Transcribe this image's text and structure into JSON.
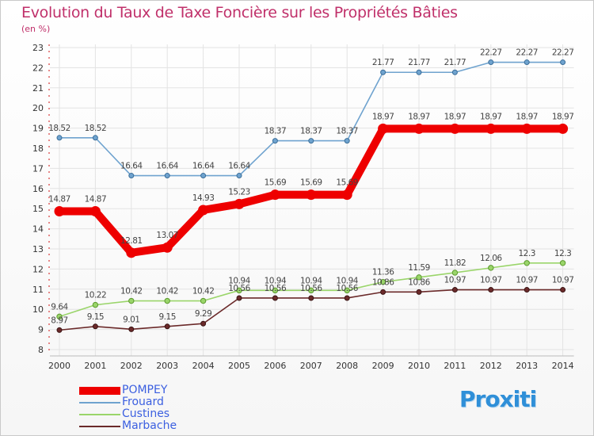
{
  "chart_data": {
    "type": "line",
    "title": "Evolution du Taux de Taxe Foncière sur les Propriétés Bâties",
    "subtitle": "(en %)",
    "xlabel": "",
    "ylabel": "",
    "ylim": [
      8,
      23
    ],
    "yticks": [
      "8",
      "9",
      "10",
      "11",
      "12",
      "13",
      "14",
      "15",
      "16",
      "17",
      "18",
      "19",
      "20",
      "21",
      "22",
      "23"
    ],
    "categories": [
      "2000",
      "2001",
      "2002",
      "2003",
      "2004",
      "2005",
      "2006",
      "2007",
      "2008",
      "2009",
      "2010",
      "2011",
      "2012",
      "2013",
      "2014"
    ],
    "series": [
      {
        "name": "Frouard",
        "color": "#6fa3cf",
        "values": [
          18.52,
          18.52,
          16.64,
          16.64,
          16.64,
          16.64,
          18.37,
          18.37,
          18.37,
          21.77,
          21.77,
          21.77,
          22.27,
          22.27,
          22.27
        ],
        "labels": [
          "18.52",
          "18.52",
          "16.64",
          "16.64",
          "16.64",
          "16.64",
          "18.37",
          "18.37",
          "18.37",
          "21.77",
          "21.77",
          "21.77",
          "22.27",
          "22.27",
          "22.27"
        ]
      },
      {
        "name": "Custines",
        "color": "#9ad56a",
        "values": [
          9.64,
          10.22,
          10.42,
          10.42,
          10.42,
          10.94,
          10.94,
          10.94,
          10.94,
          11.36,
          11.59,
          11.82,
          12.06,
          12.3,
          12.3
        ],
        "labels": [
          "9.64",
          "10.22",
          "10.42",
          "10.42",
          "10.42",
          "10.94",
          "10.94",
          "10.94",
          "10.94",
          "11.36",
          "11.59",
          "11.82",
          "12.06",
          "12.3",
          "12.3"
        ]
      },
      {
        "name": "Marbache",
        "color": "#6b2a2a",
        "values": [
          8.97,
          9.15,
          9.01,
          9.15,
          9.29,
          10.56,
          10.56,
          10.56,
          10.56,
          10.86,
          10.86,
          10.97,
          10.97,
          10.97,
          10.97
        ],
        "labels": [
          "8.97",
          "9.15",
          "9.01",
          "9.15",
          "9.29",
          "10.56",
          "10.56",
          "10.56",
          "10.56",
          "10.86",
          "10.86",
          "10.97",
          "10.97",
          "10.97",
          "10.97"
        ]
      },
      {
        "name": "POMPEY",
        "color": "#ee0000",
        "values": [
          14.87,
          14.87,
          12.81,
          13.07,
          14.93,
          15.23,
          15.69,
          15.69,
          15.69,
          18.97,
          18.97,
          18.97,
          18.97,
          18.97,
          18.97
        ],
        "labels": [
          "14.87",
          "14.87",
          "12.81",
          "13.07",
          "14.93",
          "15.23",
          "15.69",
          "15.69",
          "15.69",
          "18.97",
          "18.97",
          "18.97",
          "18.97",
          "18.97",
          "18.97"
        ]
      }
    ],
    "legend": [
      "POMPEY",
      "Frouard",
      "Custines",
      "Marbache"
    ],
    "legend_position": "bottom-left"
  },
  "brand": {
    "logo_text": "Proxiti"
  }
}
